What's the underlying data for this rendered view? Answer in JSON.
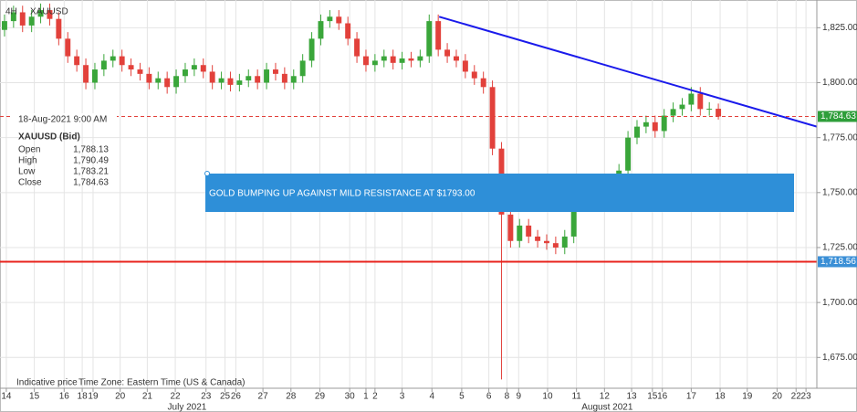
{
  "chart_data": {
    "type": "candlestick",
    "header": {
      "interval": "4H",
      "symbol": "XAUUSD"
    },
    "footer": {
      "note": "Indicative price",
      "timezone": "Time Zone: Eastern Time (US & Canada)"
    },
    "info": {
      "date": "18-Aug-2021 9:00 AM",
      "symbol": "XAUUSD (Bid)",
      "rows": [
        [
          "Open",
          "1,788.13"
        ],
        [
          "High",
          "1,790.49"
        ],
        [
          "Low",
          "1,783.21"
        ],
        [
          "Close",
          "1,784.63"
        ]
      ]
    },
    "annotation": "GOLD  BUMPING UP AGAINST MILD RESISTANCE AT $1793.00",
    "up_color": "#3aa63a",
    "down_color": "#e2413b",
    "x": [
      0,
      1,
      2,
      3,
      4,
      5,
      6,
      7,
      8,
      9,
      10,
      11,
      12,
      13,
      14,
      15,
      16,
      17,
      18,
      19,
      20,
      21,
      22,
      23,
      24,
      25,
      26,
      27,
      28,
      29,
      30,
      31,
      32,
      33,
      34,
      35,
      36,
      37,
      38,
      39,
      40,
      41,
      42,
      43,
      44,
      45,
      46,
      47,
      48,
      49,
      50,
      51,
      52,
      53,
      54,
      55,
      56,
      57,
      58,
      59,
      60,
      61,
      62,
      63,
      64,
      65,
      66,
      67,
      68,
      69,
      70,
      71,
      72,
      73,
      74,
      75,
      76,
      77,
      78,
      79
    ],
    "open": [
      1824,
      1828,
      1832,
      1826,
      1830,
      1833,
      1829,
      1820,
      1812,
      1808,
      1800,
      1806,
      1810,
      1812,
      1808,
      1806,
      1804,
      1800,
      1802,
      1798,
      1803,
      1806,
      1808,
      1805,
      1800,
      1802,
      1799,
      1801,
      1803,
      1800,
      1806,
      1804,
      1800,
      1803,
      1810,
      1820,
      1828,
      1830,
      1827,
      1820,
      1812,
      1808,
      1810,
      1812,
      1809,
      1811,
      1810,
      1812,
      1828,
      1815,
      1812,
      1810,
      1805,
      1802,
      1798,
      1770,
      1740,
      1728,
      1735,
      1730,
      1728,
      1727,
      1725,
      1730,
      1745,
      1750,
      1748,
      1752,
      1755,
      1760,
      1775,
      1780,
      1782,
      1778,
      1785,
      1788,
      1790,
      1795,
      1788,
      1788.13
    ],
    "high": [
      1831,
      1835,
      1835,
      1833,
      1836,
      1836,
      1832,
      1823,
      1815,
      1811,
      1809,
      1813,
      1815,
      1815,
      1811,
      1809,
      1807,
      1805,
      1805,
      1806,
      1809,
      1811,
      1811,
      1808,
      1805,
      1805,
      1804,
      1806,
      1806,
      1809,
      1809,
      1807,
      1806,
      1813,
      1823,
      1831,
      1833,
      1833,
      1830,
      1823,
      1815,
      1813,
      1815,
      1815,
      1814,
      1814,
      1815,
      1831,
      1831,
      1818,
      1815,
      1813,
      1808,
      1805,
      1801,
      1773,
      1743,
      1738,
      1738,
      1733,
      1731,
      1730,
      1733,
      1748,
      1753,
      1753,
      1755,
      1758,
      1763,
      1778,
      1783,
      1785,
      1785,
      1788,
      1791,
      1793,
      1798,
      1798,
      1791.13,
      1790.49
    ],
    "low": [
      1821,
      1825,
      1823,
      1823,
      1827,
      1826,
      1817,
      1809,
      1805,
      1797,
      1797,
      1803,
      1807,
      1805,
      1803,
      1801,
      1797,
      1797,
      1795,
      1795,
      1800,
      1803,
      1802,
      1797,
      1797,
      1796,
      1796,
      1798,
      1797,
      1797,
      1801,
      1797,
      1797,
      1800,
      1807,
      1817,
      1825,
      1824,
      1817,
      1809,
      1805,
      1805,
      1807,
      1806,
      1806,
      1807,
      1807,
      1809,
      1812,
      1809,
      1807,
      1802,
      1799,
      1795,
      1767,
      1665,
      1725,
      1725,
      1727,
      1725,
      1724,
      1722,
      1722,
      1727,
      1742,
      1745,
      1745,
      1749,
      1752,
      1757,
      1772,
      1777,
      1775,
      1775,
      1782,
      1785,
      1787,
      1785,
      1785,
      1783.21
    ],
    "close": [
      1828,
      1832,
      1826,
      1830,
      1833,
      1829,
      1820,
      1812,
      1808,
      1800,
      1806,
      1810,
      1812,
      1808,
      1806,
      1804,
      1800,
      1802,
      1798,
      1803,
      1806,
      1808,
      1805,
      1800,
      1802,
      1799,
      1801,
      1803,
      1800,
      1806,
      1804,
      1800,
      1803,
      1810,
      1820,
      1828,
      1830,
      1827,
      1820,
      1812,
      1808,
      1810,
      1812,
      1809,
      1811,
      1810,
      1812,
      1828,
      1815,
      1812,
      1810,
      1805,
      1802,
      1798,
      1770,
      1740,
      1728,
      1735,
      1730,
      1728,
      1727,
      1725,
      1730,
      1745,
      1750,
      1748,
      1752,
      1755,
      1760,
      1775,
      1780,
      1782,
      1778,
      1785,
      1788,
      1790,
      1795,
      1788,
      1788.13,
      1784.63
    ],
    "xlim": [
      -0.5,
      89.9
    ],
    "ylim": [
      1661,
      1837.6
    ],
    "yticks": [
      {
        "value": 1825,
        "label": "1,825.00"
      },
      {
        "value": 1800,
        "label": "1,800.00"
      },
      {
        "value": 1775,
        "label": "1,775.00"
      },
      {
        "value": 1750,
        "label": "1,750.00"
      },
      {
        "value": 1725,
        "label": "1,725.00"
      },
      {
        "value": 1700,
        "label": "1,700.00"
      },
      {
        "value": 1675,
        "label": "1,675.00"
      }
    ],
    "xticks": [
      {
        "value": 0.2,
        "label": "14"
      },
      {
        "value": 3.3,
        "label": "15"
      },
      {
        "value": 6.6,
        "label": "16"
      },
      {
        "value": 8.6,
        "label": "18"
      },
      {
        "value": 9.8,
        "label": "19"
      },
      {
        "value": 12.8,
        "label": "20"
      },
      {
        "value": 15.8,
        "label": "21"
      },
      {
        "value": 18.9,
        "label": "22"
      },
      {
        "value": 22.3,
        "label": "23"
      },
      {
        "value": 24.4,
        "label": "25"
      },
      {
        "value": 25.6,
        "label": "26"
      },
      {
        "value": 28.6,
        "label": "27"
      },
      {
        "value": 31.7,
        "label": "28"
      },
      {
        "value": 34.9,
        "label": "29"
      },
      {
        "value": 38.2,
        "label": "30"
      },
      {
        "value": 40,
        "label": "1"
      },
      {
        "value": 41,
        "label": "2"
      },
      {
        "value": 44,
        "label": "3"
      },
      {
        "value": 47.3,
        "label": "4"
      },
      {
        "value": 50.6,
        "label": "5"
      },
      {
        "value": 53.6,
        "label": "6"
      },
      {
        "value": 55.6,
        "label": "8"
      },
      {
        "value": 56.9,
        "label": "9"
      },
      {
        "value": 60.1,
        "label": "10"
      },
      {
        "value": 63.3,
        "label": "11"
      },
      {
        "value": 66.4,
        "label": "12"
      },
      {
        "value": 69.4,
        "label": "13"
      },
      {
        "value": 71.7,
        "label": "15"
      },
      {
        "value": 72.8,
        "label": "16"
      },
      {
        "value": 76,
        "label": "17"
      },
      {
        "value": 79.2,
        "label": "18"
      },
      {
        "value": 82.2,
        "label": "19"
      },
      {
        "value": 85.5,
        "label": "20"
      },
      {
        "value": 87.6,
        "label": "22"
      },
      {
        "value": 88.7,
        "label": "23"
      }
    ],
    "month_labels": [
      {
        "value": 20.2,
        "label": "July 2021"
      },
      {
        "value": 66.7,
        "label": "August 2021"
      }
    ],
    "grid": true,
    "trendline": {
      "x": [
        48.1,
        89.9
      ],
      "y": [
        1830,
        1780
      ],
      "color": "#1a1aeb"
    },
    "levels": [
      {
        "value": 1784.63,
        "label": "1,784.63",
        "color": "#e2413b",
        "style": "dashed",
        "badge": "#2e9e3a"
      },
      {
        "value": 1718.56,
        "label": "1,718.56",
        "color": "#e8231c",
        "style": "solid",
        "badge": "#3a8fd6"
      }
    ]
  }
}
